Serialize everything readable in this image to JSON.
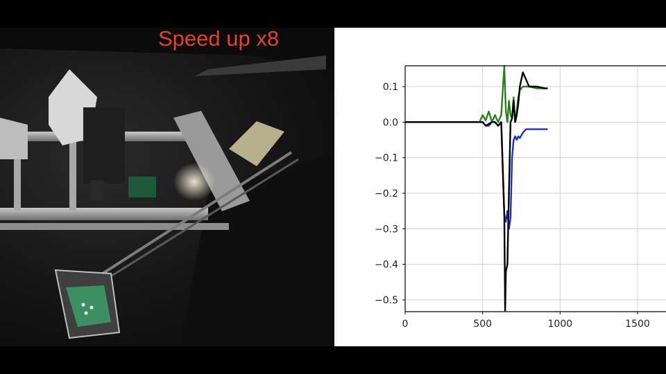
{
  "overlay": {
    "speed_text": "Speed up x8",
    "speed_color": "#e8402e"
  },
  "camera": {
    "description_icon": "robot-workcell-camera-feed"
  },
  "chart_data": {
    "type": "line",
    "title": "",
    "xlabel": "",
    "ylabel": "",
    "xlim": [
      0,
      1700
    ],
    "ylim": [
      -0.53,
      0.16
    ],
    "x_ticks": [
      0,
      500,
      1000,
      1500
    ],
    "x_tick_labels": [
      "0",
      "500",
      "1000",
      "1500"
    ],
    "y_ticks": [
      0.1,
      0.0,
      -0.1,
      -0.2,
      -0.3,
      -0.4,
      -0.5
    ],
    "y_tick_labels": [
      "0.1",
      "0.0",
      "−0.1",
      "−0.2",
      "−0.3",
      "−0.4",
      "−0.5"
    ],
    "grid": true,
    "series": [
      {
        "color": "#1f2fbf",
        "x": [
          0,
          100,
          200,
          300,
          400,
          480,
          500,
          520,
          540,
          560,
          580,
          600,
          620,
          640,
          650,
          660,
          670,
          680,
          690,
          700,
          710,
          720,
          730,
          740,
          760,
          780,
          800,
          850,
          900,
          920
        ],
        "y": [
          0.0,
          0.0,
          0.0,
          0.0,
          0.0,
          0.0,
          0.0,
          -0.01,
          -0.01,
          0.0,
          0.0,
          -0.01,
          0.0,
          -0.26,
          -0.28,
          -0.25,
          -0.3,
          -0.27,
          -0.1,
          -0.05,
          -0.04,
          -0.05,
          -0.04,
          -0.045,
          -0.03,
          -0.02,
          -0.02,
          -0.02,
          -0.02,
          -0.02
        ]
      },
      {
        "color": "#2e7d1f",
        "x": [
          0,
          100,
          200,
          300,
          400,
          480,
          500,
          520,
          540,
          560,
          580,
          600,
          620,
          640,
          650,
          660,
          670,
          680,
          690,
          700,
          710,
          720,
          730,
          740,
          760,
          780,
          800,
          850,
          900,
          920
        ],
        "y": [
          0.0,
          0.0,
          0.0,
          0.0,
          0.0,
          0.0,
          0.02,
          0.005,
          0.03,
          0.0,
          0.02,
          0.0,
          0.02,
          0.16,
          0.03,
          0.0,
          0.06,
          0.02,
          0.01,
          0.07,
          0.0,
          0.03,
          0.07,
          0.09,
          0.1,
          0.1,
          0.1,
          0.095,
          0.095,
          0.095
        ]
      },
      {
        "color": "#000000",
        "x": [
          0,
          100,
          200,
          300,
          400,
          480,
          500,
          520,
          540,
          560,
          580,
          600,
          620,
          640,
          645,
          650,
          660,
          670,
          680,
          690,
          700,
          710,
          720,
          730,
          740,
          760,
          780,
          800,
          850,
          900,
          920
        ],
        "y": [
          0.0,
          0.0,
          0.0,
          0.0,
          0.0,
          0.0,
          0.0,
          -0.01,
          -0.005,
          0.0,
          0.0,
          -0.01,
          0.0,
          -0.26,
          -0.53,
          -0.42,
          -0.4,
          -0.2,
          0.0,
          0.01,
          0.06,
          0.0,
          0.02,
          0.05,
          0.1,
          0.14,
          0.12,
          0.1,
          0.1,
          0.095,
          0.095
        ]
      }
    ]
  }
}
